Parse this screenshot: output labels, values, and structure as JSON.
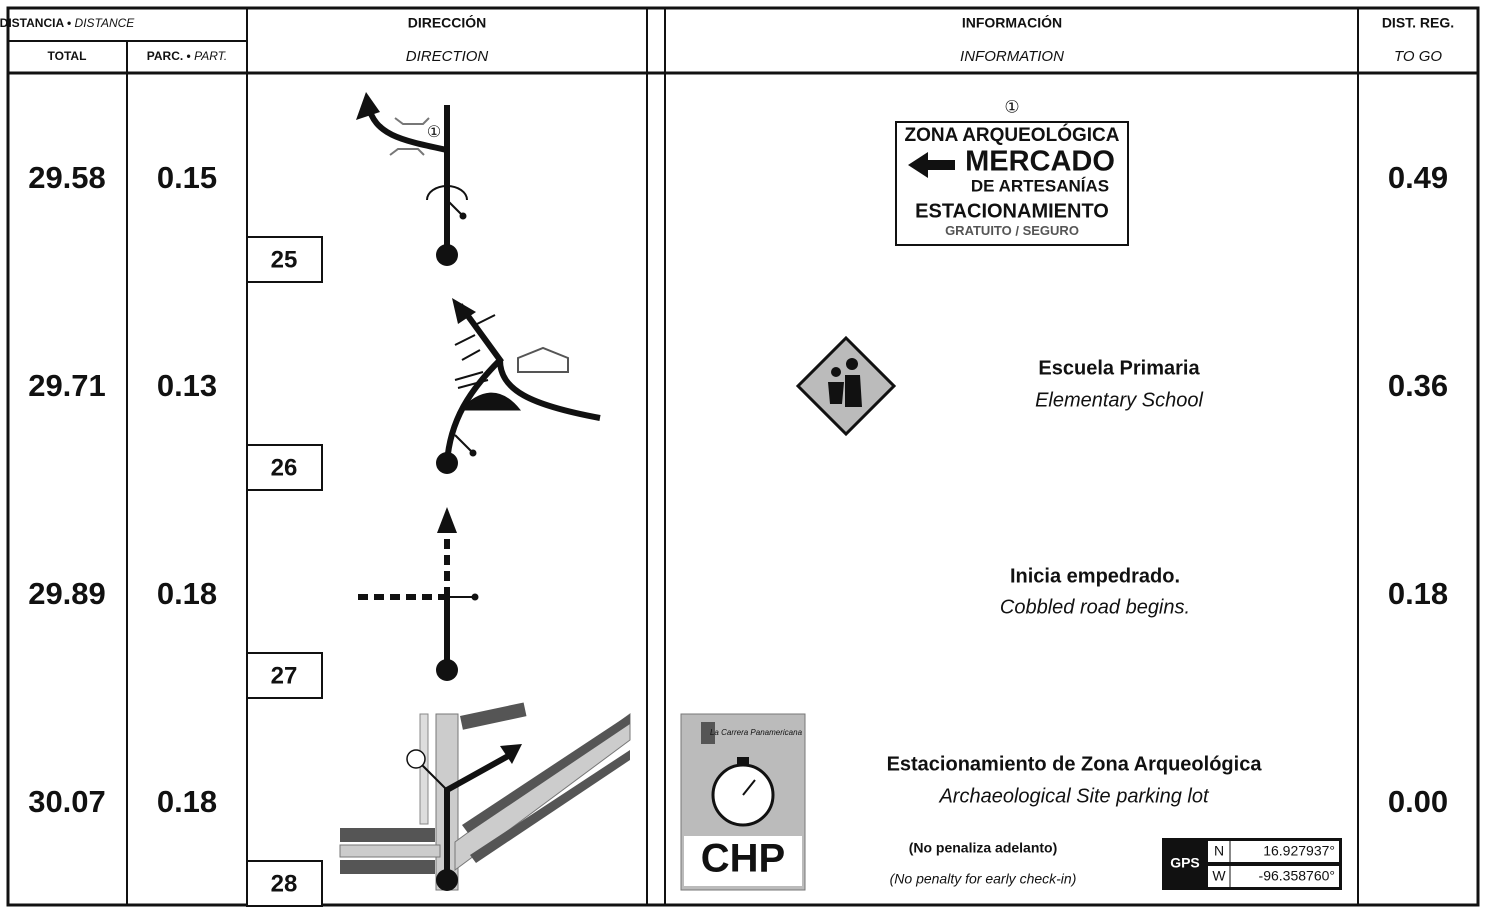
{
  "header": {
    "distance_es": "DISTANCIA •",
    "distance_en": "DISTANCE",
    "total": "TOTAL",
    "partial_es": "PARC. •",
    "partial_en": "PART.",
    "direction_es": "DIRECCIÓN",
    "direction_en": "DIRECTION",
    "information_es": "INFORMACIÓN",
    "information_en": "INFORMATION",
    "to_go_es": "DIST. REG.",
    "to_go_en": "TO GO"
  },
  "rows": [
    {
      "total": "29.58",
      "partial": "0.15",
      "number": "25",
      "to_go": "0.49",
      "diagram_marker": "①",
      "sign": {
        "marker": "①",
        "line1": "ZONA ARQUEOLÓGICA",
        "line2": "MERCADO",
        "line3": "DE ARTESANÍAS",
        "line4": "ESTACIONAMIENTO",
        "line5a": "GRATUITO",
        "line5b": "SEGURO"
      }
    },
    {
      "total": "29.71",
      "partial": "0.13",
      "number": "26",
      "to_go": "0.36",
      "info_es": "Escuela Primaria",
      "info_en": "Elementary School"
    },
    {
      "total": "29.89",
      "partial": "0.18",
      "number": "27",
      "to_go": "0.18",
      "info_es": "Inicia empedrado.",
      "info_en": "Cobbled road begins."
    },
    {
      "total": "30.07",
      "partial": "0.18",
      "number": "28",
      "to_go": "0.00",
      "info_es": "Estacionamiento de Zona Arqueológica",
      "info_en": "Archaeological Site parking lot",
      "card": {
        "brand": "La Carrera Panamericana",
        "code": "CHP"
      },
      "note_es": "(No penaliza adelanto)",
      "note_en": "(No penalty for early check-in)",
      "gps": {
        "label": "GPS",
        "lat_dir": "N",
        "lat": "16.927937°",
        "lon_dir": "W",
        "lon": "-96.358760°"
      }
    }
  ]
}
